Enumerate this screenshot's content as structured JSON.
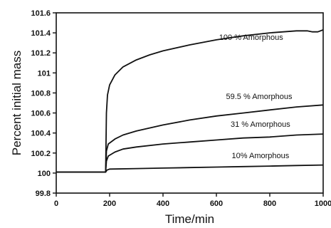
{
  "chart_data": {
    "type": "line",
    "title": "",
    "xlabel": "Time/min",
    "ylabel": "Percent initial mass",
    "xlim": [
      0,
      1000
    ],
    "ylim": [
      99.8,
      101.6
    ],
    "xticks": [
      0,
      200,
      400,
      600,
      800,
      1000
    ],
    "xtick_labels": [
      "0",
      "200",
      "400",
      "600",
      "800",
      "1000"
    ],
    "yticks": [
      99.8,
      100,
      100.2,
      100.4,
      100.6,
      100.8,
      101,
      101.2,
      101.4,
      101.6
    ],
    "ytick_labels": [
      "99.8",
      "100",
      "100.2",
      "100.4",
      "100.6",
      "100.8",
      "101",
      "101.2",
      "101.4",
      "101.6"
    ],
    "grid": false,
    "legend": "none",
    "line_color": "#111111",
    "series": [
      {
        "name": "100 % Amorphous",
        "x": [
          0,
          100,
          185,
          188,
          192,
          200,
          220,
          250,
          300,
          350,
          400,
          500,
          600,
          700,
          800,
          900,
          940,
          960,
          980,
          1000
        ],
        "y": [
          100.01,
          100.01,
          100.01,
          100.6,
          100.78,
          100.88,
          100.98,
          101.06,
          101.13,
          101.18,
          101.22,
          101.28,
          101.33,
          101.37,
          101.4,
          101.42,
          101.42,
          101.41,
          101.41,
          101.43
        ]
      },
      {
        "name": "59.5 % Amorphous",
        "x": [
          0,
          100,
          185,
          188,
          195,
          220,
          250,
          300,
          400,
          500,
          600,
          700,
          800,
          900,
          1000
        ],
        "y": [
          100.01,
          100.01,
          100.01,
          100.22,
          100.29,
          100.34,
          100.38,
          100.42,
          100.48,
          100.53,
          100.57,
          100.6,
          100.63,
          100.66,
          100.68
        ]
      },
      {
        "name": "31 % Amorphous",
        "x": [
          0,
          100,
          185,
          188,
          195,
          220,
          250,
          300,
          400,
          500,
          600,
          700,
          800,
          900,
          1000
        ],
        "y": [
          100.01,
          100.01,
          100.01,
          100.12,
          100.17,
          100.21,
          100.24,
          100.26,
          100.29,
          100.31,
          100.33,
          100.35,
          100.36,
          100.38,
          100.39
        ]
      },
      {
        "name": "10% Amorphous",
        "x": [
          0,
          100,
          185,
          190,
          200,
          300,
          400,
          500,
          600,
          700,
          800,
          900,
          1000
        ],
        "y": [
          100.01,
          100.01,
          100.01,
          100.03,
          100.04,
          100.045,
          100.05,
          100.055,
          100.06,
          100.065,
          100.07,
          100.075,
          100.08
        ]
      }
    ]
  }
}
